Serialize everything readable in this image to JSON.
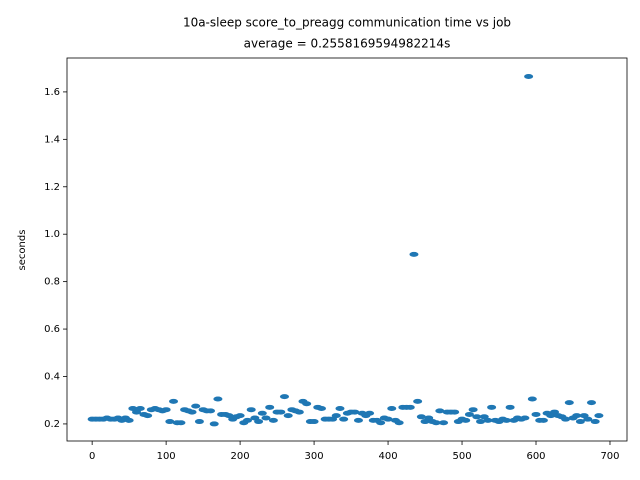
{
  "chart_data": {
    "type": "scatter",
    "title": "10a-sleep score_to_preagg communication time vs job",
    "subtitle": "average = 0.2558169594982214s",
    "y_label": "seconds",
    "color": "#1f77b4",
    "xlim": [
      -34,
      723
    ],
    "ylim": [
      0.128,
      1.743
    ],
    "xticks": [
      0,
      100,
      200,
      300,
      400,
      500,
      600,
      700
    ],
    "yticks": [
      0.2,
      0.4,
      0.6,
      0.8,
      {
        "value": 1,
        "label": "1.0"
      },
      1.2,
      1.4,
      1.6
    ],
    "x": [
      0,
      5,
      10,
      15,
      20,
      25,
      30,
      35,
      40,
      45,
      50,
      55,
      60,
      65,
      70,
      75,
      80,
      85,
      90,
      95,
      100,
      105,
      110,
      115,
      120,
      125,
      130,
      135,
      140,
      145,
      150,
      155,
      160,
      165,
      170,
      175,
      180,
      185,
      190,
      195,
      200,
      205,
      210,
      215,
      220,
      225,
      230,
      235,
      240,
      245,
      250,
      255,
      260,
      265,
      270,
      275,
      280,
      285,
      290,
      295,
      300,
      305,
      310,
      315,
      320,
      325,
      330,
      335,
      340,
      345,
      350,
      355,
      360,
      365,
      370,
      375,
      380,
      385,
      390,
      395,
      400,
      405,
      410,
      415,
      420,
      425,
      430,
      435,
      440,
      445,
      450,
      455,
      460,
      465,
      470,
      475,
      480,
      485,
      490,
      495,
      500,
      505,
      510,
      515,
      520,
      525,
      530,
      535,
      540,
      545,
      550,
      555,
      560,
      565,
      570,
      575,
      580,
      585,
      590,
      595,
      600,
      605,
      610,
      615,
      620,
      625,
      630,
      635,
      640,
      645,
      650,
      655,
      660,
      665,
      670,
      675,
      680,
      685
    ],
    "values": [
      0.22,
      0.22,
      0.22,
      0.22,
      0.225,
      0.22,
      0.22,
      0.225,
      0.215,
      0.225,
      0.215,
      0.265,
      0.25,
      0.265,
      0.24,
      0.235,
      0.26,
      0.265,
      0.26,
      0.255,
      0.26,
      0.21,
      0.295,
      0.205,
      0.205,
      0.26,
      0.255,
      0.25,
      0.275,
      0.21,
      0.26,
      0.255,
      0.255,
      0.2,
      0.305,
      0.24,
      0.24,
      0.235,
      0.22,
      0.23,
      0.235,
      0.205,
      0.215,
      0.26,
      0.225,
      0.21,
      0.245,
      0.225,
      0.27,
      0.215,
      0.25,
      0.25,
      0.315,
      0.235,
      0.26,
      0.255,
      0.25,
      0.295,
      0.285,
      0.21,
      0.21,
      0.27,
      0.265,
      0.22,
      0.22,
      0.22,
      0.235,
      0.265,
      0.22,
      0.245,
      0.25,
      0.25,
      0.215,
      0.245,
      0.235,
      0.245,
      0.215,
      0.215,
      0.205,
      0.225,
      0.22,
      0.265,
      0.215,
      0.205,
      0.27,
      0.27,
      0.27,
      0.915,
      0.295,
      0.23,
      0.21,
      0.225,
      0.21,
      0.205,
      0.255,
      0.205,
      0.25,
      0.25,
      0.25,
      0.21,
      0.22,
      0.215,
      0.24,
      0.26,
      0.23,
      0.21,
      0.23,
      0.215,
      0.27,
      0.215,
      0.21,
      0.22,
      0.215,
      0.27,
      0.215,
      0.225,
      0.22,
      0.225,
      1.665,
      0.305,
      0.24,
      0.215,
      0.215,
      0.245,
      0.235,
      0.25,
      0.235,
      0.23,
      0.22,
      0.29,
      0.225,
      0.235,
      0.21,
      0.235,
      0.22,
      0.29,
      0.21,
      0.235
    ]
  }
}
